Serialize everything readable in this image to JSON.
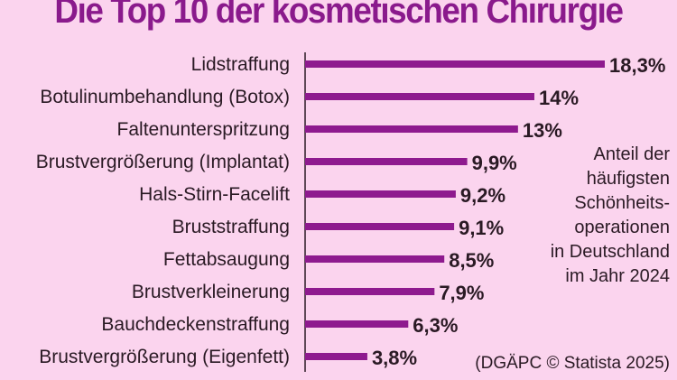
{
  "chart_data": {
    "type": "bar",
    "orientation": "horizontal",
    "title": "Die Top 10 der kosmetischen Chirurgie",
    "categories": [
      "Lidstraffung",
      "Botulinumbehandlung (Botox)",
      "Faltenunterspritzung",
      "Brustvergrößerung (Implantat)",
      "Hals-Stirn-Facelift",
      "Bruststraffung",
      "Fettabsaugung",
      "Brustverkleinerung",
      "Bauchdeckenstraffung",
      "Brustvergrößerung (Eigenfett)"
    ],
    "values": [
      18.3,
      14,
      13,
      9.9,
      9.2,
      9.1,
      8.5,
      7.9,
      6.3,
      3.8
    ],
    "value_labels": [
      "18,3%",
      "14%",
      "13%",
      "9,9%",
      "9,2%",
      "9,1%",
      "8,5%",
      "7,9%",
      "6,3%",
      "3,8%"
    ],
    "unit": "%",
    "xlim": [
      0,
      18.3
    ],
    "grid": false,
    "annotation_lines": [
      "Anteil der",
      "häufigsten",
      "Schönheits-",
      "operationen",
      "in Deutschland",
      "im Jahr 2024"
    ],
    "source": "(DGÄPC © Statista 2025)"
  },
  "colors": {
    "background": "#fbd4ee",
    "bar": "#8e1a8e",
    "title": "#8a1a8c",
    "text": "#2a1a24"
  }
}
